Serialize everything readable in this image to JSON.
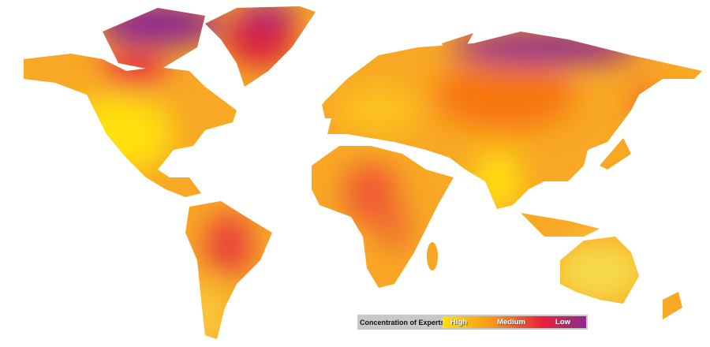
{
  "legend": {
    "title": "Concentration of Experts:",
    "labels": [
      "High",
      "Medium",
      "Low"
    ],
    "colors": [
      "#ffe010",
      "#f7941d",
      "#e8203a",
      "#8e2a8e"
    ]
  },
  "regions": [
    {
      "name": "north-america",
      "level": "high"
    },
    {
      "name": "canadian-arctic",
      "level": "low"
    },
    {
      "name": "greenland",
      "level": "low"
    },
    {
      "name": "south-america",
      "level": "medium"
    },
    {
      "name": "eurasia",
      "level": "medium"
    },
    {
      "name": "africa",
      "level": "medium"
    },
    {
      "name": "australia",
      "level": "high"
    }
  ]
}
